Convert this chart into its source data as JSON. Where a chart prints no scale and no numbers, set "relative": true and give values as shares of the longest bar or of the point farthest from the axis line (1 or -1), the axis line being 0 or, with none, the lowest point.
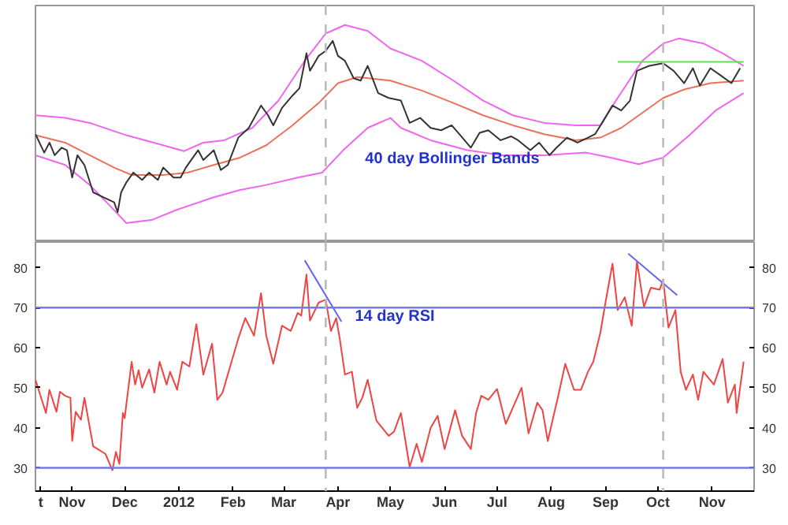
{
  "chart_data": [
    {
      "type": "line",
      "relative": true,
      "tick_labels": false,
      "xlim": [
        "2011-10-11",
        "2012-11-25"
      ],
      "annotations": [
        "40 day Bollinger Bands"
      ],
      "ref_lines": [
        {
          "axis": "x",
          "value": "2012-03-25",
          "color": "#bbbbbb",
          "line_style": "dashed"
        },
        {
          "axis": "x",
          "value": "2012-10-04",
          "color": "#bbbbbb",
          "line_style": "dashed"
        }
      ],
      "series": [
        {
          "color": "#ee66ee",
          "x": [
            "2011-10-11",
            "2011-10-28",
            "2011-11-11",
            "2011-12-02",
            "2011-12-23",
            "2012-01-04",
            "2012-01-15",
            "2012-01-27",
            "2012-02-12",
            "2012-02-27",
            "2012-03-13",
            "2012-03-25",
            "2012-04-05",
            "2012-04-18",
            "2012-05-01",
            "2012-05-19",
            "2012-06-06",
            "2012-06-23",
            "2012-07-10",
            "2012-07-28",
            "2012-08-15",
            "2012-08-29",
            "2012-09-07",
            "2012-09-22",
            "2012-10-04",
            "2012-10-13",
            "2012-10-27",
            "2012-11-07",
            "2012-11-19"
          ],
          "values": [
            0.584,
            0.572,
            0.549,
            0.492,
            0.446,
            0.419,
            0.458,
            0.469,
            0.526,
            0.652,
            0.835,
            0.961,
            1.0,
            0.973,
            0.892,
            0.835,
            0.744,
            0.652,
            0.584,
            0.549,
            0.538,
            0.538,
            0.652,
            0.835,
            0.915,
            0.938,
            0.915,
            0.87,
            0.812
          ]
        },
        {
          "color": "#ee66ee",
          "x": [
            "2011-10-11",
            "2011-10-28",
            "2011-11-11",
            "2011-11-22",
            "2011-12-02",
            "2011-12-17",
            "2011-12-31",
            "2012-01-21",
            "2012-02-05",
            "2012-02-20",
            "2012-03-09",
            "2012-03-23",
            "2012-04-04",
            "2012-04-18",
            "2012-05-01",
            "2012-05-07",
            "2012-05-24",
            "2012-06-14",
            "2012-07-04",
            "2012-07-28",
            "2012-08-21",
            "2012-09-04",
            "2012-09-20",
            "2012-10-04",
            "2012-10-19",
            "2012-11-03",
            "2012-11-19"
          ],
          "values": [
            0.4,
            0.355,
            0.263,
            0.172,
            0.087,
            0.103,
            0.149,
            0.206,
            0.24,
            0.263,
            0.297,
            0.32,
            0.423,
            0.526,
            0.572,
            0.526,
            0.469,
            0.423,
            0.4,
            0.4,
            0.412,
            0.389,
            0.359,
            0.389,
            0.492,
            0.606,
            0.686
          ]
        },
        {
          "color": "#e8735a",
          "x": [
            "2011-10-11",
            "2011-10-28",
            "2011-11-11",
            "2011-11-25",
            "2011-12-05",
            "2011-12-23",
            "2012-01-06",
            "2012-01-21",
            "2012-02-05",
            "2012-02-20",
            "2012-03-06",
            "2012-03-21",
            "2012-04-01",
            "2012-04-12",
            "2012-05-01",
            "2012-05-19",
            "2012-06-06",
            "2012-06-23",
            "2012-07-10",
            "2012-07-28",
            "2012-08-15",
            "2012-08-29",
            "2012-09-10",
            "2012-09-22",
            "2012-10-04",
            "2012-10-16",
            "2012-10-31",
            "2012-11-19"
          ],
          "values": [
            0.492,
            0.458,
            0.4,
            0.343,
            0.309,
            0.309,
            0.32,
            0.355,
            0.389,
            0.446,
            0.538,
            0.641,
            0.732,
            0.76,
            0.744,
            0.698,
            0.641,
            0.584,
            0.538,
            0.497,
            0.469,
            0.481,
            0.526,
            0.595,
            0.664,
            0.703,
            0.732,
            0.744
          ]
        },
        {
          "color": "#333333",
          "x": [
            "2011-10-11",
            "2011-10-16",
            "2011-10-19",
            "2011-10-22",
            "2011-10-26",
            "2011-10-29",
            "2011-11-01",
            "2011-11-04",
            "2011-11-08",
            "2011-11-13",
            "2011-11-19",
            "2011-11-25",
            "2011-11-27",
            "2011-11-29",
            "2011-12-02",
            "2011-12-06",
            "2011-12-11",
            "2011-12-15",
            "2011-12-20",
            "2011-12-23",
            "2011-12-29",
            "2012-01-02",
            "2012-01-05",
            "2012-01-12",
            "2012-01-15",
            "2012-01-21",
            "2012-01-25",
            "2012-01-29",
            "2012-02-04",
            "2012-02-10",
            "2012-02-17",
            "2012-02-21",
            "2012-02-24",
            "2012-02-29",
            "2012-03-06",
            "2012-03-10",
            "2012-03-14",
            "2012-03-16",
            "2012-03-21",
            "2012-03-25",
            "2012-03-29",
            "2012-04-01",
            "2012-04-05",
            "2012-04-10",
            "2012-04-14",
            "2012-04-18",
            "2012-04-24",
            "2012-04-30",
            "2012-05-07",
            "2012-05-12",
            "2012-05-18",
            "2012-05-24",
            "2012-05-30",
            "2012-06-05",
            "2012-06-10",
            "2012-06-16",
            "2012-06-21",
            "2012-06-26",
            "2012-07-03",
            "2012-07-09",
            "2012-07-13",
            "2012-07-20",
            "2012-07-25",
            "2012-07-31",
            "2012-08-04",
            "2012-08-10",
            "2012-08-16",
            "2012-08-22",
            "2012-08-26",
            "2012-08-31",
            "2012-09-05",
            "2012-09-10",
            "2012-09-15",
            "2012-09-19",
            "2012-09-26",
            "2012-10-04",
            "2012-10-10",
            "2012-10-16",
            "2012-10-21",
            "2012-10-25",
            "2012-10-31",
            "2012-11-06",
            "2012-11-12",
            "2012-11-17"
          ],
          "values": [
            0.497,
            0.412,
            0.458,
            0.4,
            0.435,
            0.423,
            0.297,
            0.4,
            0.355,
            0.229,
            0.206,
            0.183,
            0.137,
            0.229,
            0.275,
            0.32,
            0.286,
            0.32,
            0.286,
            0.343,
            0.297,
            0.297,
            0.343,
            0.423,
            0.378,
            0.423,
            0.332,
            0.355,
            0.481,
            0.526,
            0.629,
            0.584,
            0.538,
            0.618,
            0.675,
            0.709,
            0.87,
            0.789,
            0.858,
            0.881,
            0.927,
            0.858,
            0.835,
            0.755,
            0.744,
            0.812,
            0.686,
            0.664,
            0.652,
            0.549,
            0.572,
            0.526,
            0.515,
            0.538,
            0.492,
            0.435,
            0.503,
            0.515,
            0.469,
            0.487,
            0.469,
            0.423,
            0.458,
            0.4,
            0.435,
            0.481,
            0.458,
            0.481,
            0.497,
            0.561,
            0.629,
            0.606,
            0.652,
            0.789,
            0.812,
            0.824,
            0.789,
            0.732,
            0.801,
            0.721,
            0.801,
            0.767,
            0.732,
            0.801
          ]
        },
        {
          "color": "#66dd55",
          "x": [
            "2012-09-08",
            "2012-11-19"
          ],
          "values": [
            0.83,
            0.83
          ]
        }
      ]
    },
    {
      "type": "line",
      "xlim": [
        "2011-10-11",
        "2012-11-25"
      ],
      "ylim": [
        24.2,
        86.4
      ],
      "yticks": [
        30,
        40,
        50,
        60,
        70,
        80
      ],
      "y2lim": [
        24.2,
        86.4
      ],
      "y2ticks": [
        30,
        40,
        50,
        60,
        70,
        80
      ],
      "annotations": [
        "14 day RSI"
      ],
      "xticks": [
        {
          "value": "2011-10-14",
          "label": "t"
        },
        {
          "value": "2011-11-01",
          "label": "Nov"
        },
        {
          "value": "2011-12-01",
          "label": "Dec"
        },
        {
          "value": "2012-01-01",
          "label": "2012"
        },
        {
          "value": "2012-02-01",
          "label": "Feb"
        },
        {
          "value": "2012-03-01",
          "label": "Mar"
        },
        {
          "value": "2012-04-01",
          "label": "Apr"
        },
        {
          "value": "2012-05-01",
          "label": "May"
        },
        {
          "value": "2012-06-01",
          "label": "Jun"
        },
        {
          "value": "2012-07-01",
          "label": "Jul"
        },
        {
          "value": "2012-08-01",
          "label": "Aug"
        },
        {
          "value": "2012-09-01",
          "label": "Sep"
        },
        {
          "value": "2012-10-01",
          "label": "Oct"
        },
        {
          "value": "2012-11-01",
          "label": "Nov"
        }
      ],
      "ref_lines": [
        {
          "axis": "y",
          "value": 70,
          "color": "#7777ee"
        },
        {
          "axis": "y",
          "value": 30,
          "color": "#7777ee"
        },
        {
          "axis": "x",
          "value": "2012-03-25",
          "color": "#bbbbbb",
          "line_style": "dashed"
        },
        {
          "axis": "x",
          "value": "2012-10-04",
          "color": "#bbbbbb",
          "line_style": "dashed"
        }
      ],
      "series": [
        {
          "color": "#ee4444",
          "x": [
            "2011-10-11",
            "2011-10-17",
            "2011-10-19",
            "2011-10-23",
            "2011-10-25",
            "2011-10-28",
            "2011-10-31",
            "2011-11-01",
            "2011-11-03",
            "2011-11-06",
            "2011-11-08",
            "2011-11-13",
            "2011-11-20",
            "2011-11-24",
            "2011-11-26",
            "2011-11-28",
            "2011-11-30",
            "2011-12-01",
            "2011-12-05",
            "2011-12-07",
            "2011-12-09",
            "2011-12-11",
            "2011-12-15",
            "2011-12-18",
            "2011-12-21",
            "2011-12-25",
            "2011-12-27",
            "2011-12-31",
            "2012-01-03",
            "2012-01-07",
            "2012-01-11",
            "2012-01-15",
            "2012-01-20",
            "2012-01-23",
            "2012-01-26",
            "2012-02-04",
            "2012-02-08",
            "2012-02-13",
            "2012-02-17",
            "2012-02-20",
            "2012-02-24",
            "2012-02-29",
            "2012-03-05",
            "2012-03-09",
            "2012-03-11",
            "2012-03-14",
            "2012-03-16",
            "2012-03-21",
            "2012-03-25",
            "2012-03-28",
            "2012-03-31",
            "2012-04-02",
            "2012-04-05",
            "2012-04-09",
            "2012-04-12",
            "2012-04-15",
            "2012-04-18",
            "2012-04-23",
            "2012-04-30",
            "2012-05-03",
            "2012-05-07",
            "2012-05-12",
            "2012-05-16",
            "2012-05-19",
            "2012-05-24",
            "2012-05-28",
            "2012-06-01",
            "2012-06-07",
            "2012-06-11",
            "2012-06-16",
            "2012-06-19",
            "2012-06-22",
            "2012-06-26",
            "2012-07-01",
            "2012-07-06",
            "2012-07-12",
            "2012-07-15",
            "2012-07-19",
            "2012-07-24",
            "2012-07-27",
            "2012-07-30",
            "2012-08-02",
            "2012-08-05",
            "2012-08-09",
            "2012-08-14",
            "2012-08-18",
            "2012-08-22",
            "2012-08-25",
            "2012-08-29",
            "2012-09-01",
            "2012-09-05",
            "2012-09-08",
            "2012-09-12",
            "2012-09-16",
            "2012-09-19",
            "2012-09-23",
            "2012-09-27",
            "2012-10-02",
            "2012-10-04",
            "2012-10-07",
            "2012-10-11",
            "2012-10-14",
            "2012-10-17",
            "2012-10-21",
            "2012-10-24",
            "2012-10-27",
            "2012-11-02",
            "2012-11-07",
            "2012-11-10",
            "2012-11-14",
            "2012-11-15",
            "2012-11-19"
          ],
          "values": [
            52,
            43.7,
            49.5,
            44,
            49,
            48,
            47.5,
            36.7,
            44,
            42,
            47.5,
            35.4,
            33.5,
            29.4,
            34,
            31,
            43.7,
            42.4,
            56.5,
            50.8,
            54.4,
            50,
            54.6,
            48.8,
            56.5,
            50.8,
            54,
            49.5,
            56.5,
            55.3,
            65.9,
            53.3,
            61,
            47,
            48.8,
            62.3,
            67.4,
            63,
            73.6,
            63,
            56,
            65.5,
            64.2,
            68.7,
            68,
            78.3,
            66.8,
            71.3,
            72,
            64.2,
            67.4,
            62.3,
            53.3,
            54,
            45,
            47.6,
            52,
            41.8,
            38,
            39,
            43.7,
            30.2,
            36,
            31.5,
            40,
            43,
            34.7,
            44.4,
            38,
            34.7,
            43.7,
            48,
            47,
            49.7,
            41,
            47,
            50,
            38.6,
            46.3,
            44.4,
            36.7,
            42.4,
            48,
            56,
            49.5,
            49.5,
            54,
            56.5,
            63.6,
            71.3,
            81,
            69.4,
            72.6,
            65.5,
            81.5,
            70.2,
            75,
            74.5,
            77,
            65,
            69.4,
            54,
            49.5,
            53.3,
            47,
            54,
            50.8,
            57.2,
            46.3,
            50.8,
            43.7,
            56.5
          ]
        },
        {
          "color": "#6666ee",
          "x": [
            "2012-03-13",
            "2012-04-03"
          ],
          "values": [
            81.8,
            66.5
          ]
        },
        {
          "color": "#6666ee",
          "x": [
            "2012-09-14",
            "2012-10-12"
          ],
          "values": [
            83.5,
            73.1
          ]
        }
      ]
    }
  ]
}
